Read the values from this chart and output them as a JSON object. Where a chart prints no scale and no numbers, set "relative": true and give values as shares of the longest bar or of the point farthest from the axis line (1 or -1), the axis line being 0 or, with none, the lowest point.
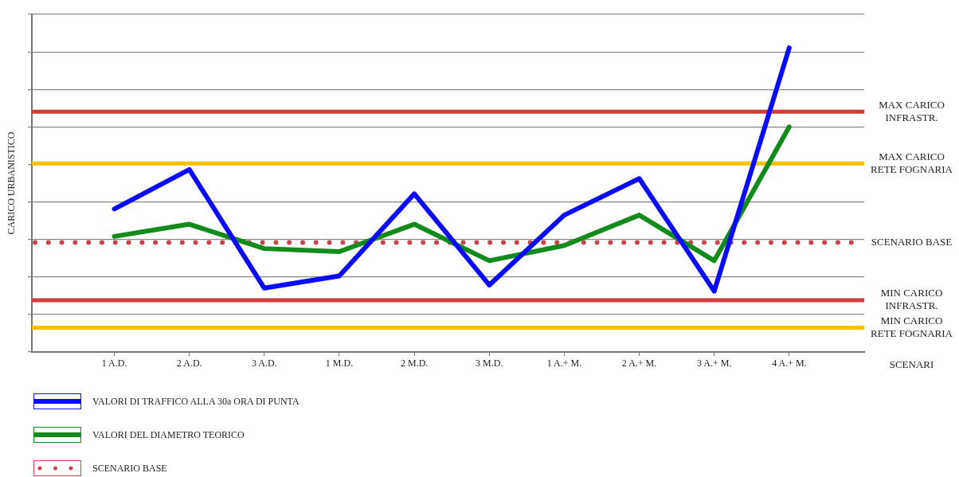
{
  "chart_data": {
    "type": "line",
    "relative": true,
    "ylabel": "CARICO URBANISTICO",
    "xlabel": "SCENARI",
    "categories": [
      "1 A.D.",
      "2 A.D.",
      "3 A.D.",
      "1 M.D.",
      "2 M.D.",
      "3 M.D.",
      "1 A.+ M.",
      "2 A.+ M.",
      "3 A.+ M.",
      "4 A.+ M."
    ],
    "series": [
      {
        "name": "VALORI DI TRAFFICO ALLA 30a ORA DI PUNTA",
        "color": "#0a0aff",
        "values": [
          0.47,
          0.6,
          0.21,
          0.25,
          0.52,
          0.22,
          0.45,
          0.57,
          0.2,
          1
        ]
      },
      {
        "name": "VALORI DEL DIAMETRO TEORICO",
        "color": "#128a1c",
        "values": [
          0.38,
          0.42,
          0.34,
          0.33,
          0.42,
          0.3,
          0.35,
          0.45,
          0.3,
          0.74
        ]
      }
    ],
    "ref_lines": [
      {
        "axis": "y",
        "value": 0.79,
        "label": "MAX CARICO INFRASTR.",
        "color": "#d23c3c"
      },
      {
        "axis": "y",
        "value": 0.62,
        "label": "MAX CARICO RETE FOGNARIA",
        "color": "#f7c300"
      },
      {
        "axis": "y",
        "value": 0.36,
        "label": "SCENARIO BASE",
        "color": "#c8454f",
        "line_style": "dotted"
      },
      {
        "axis": "y",
        "value": 0.17,
        "label": "MIN CARICO INFRASTR.",
        "color": "#d23c3c"
      },
      {
        "axis": "y",
        "value": 0.08,
        "label": "MIN CARICO RETE FOGNARIA",
        "color": "#f7c300"
      }
    ],
    "grid": "y",
    "legend": "bottom left",
    "marker": "none",
    "line_style": "solid"
  }
}
